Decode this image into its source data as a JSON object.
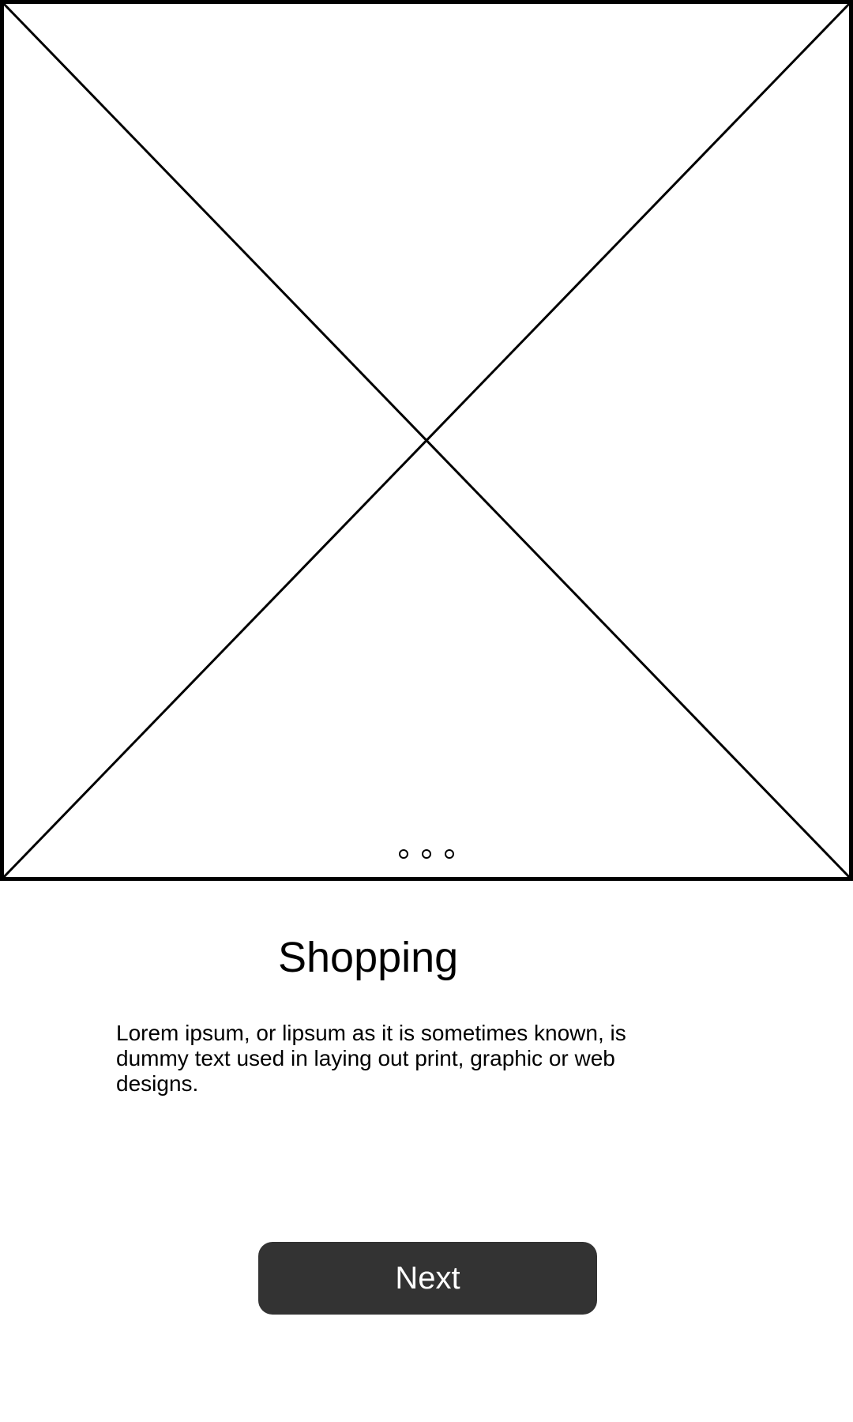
{
  "onboarding": {
    "image_placeholder_icon": "image-placeholder-icon",
    "pager_dot_count": 3,
    "title": "Shopping",
    "description": "Lorem ipsum, or lipsum as it is sometimes known, is dummy text used in laying out print, graphic or web designs.",
    "next_label": "Next"
  },
  "colors": {
    "button_background": "#333333",
    "button_text": "#ffffff",
    "text": "#000000",
    "background": "#ffffff"
  }
}
